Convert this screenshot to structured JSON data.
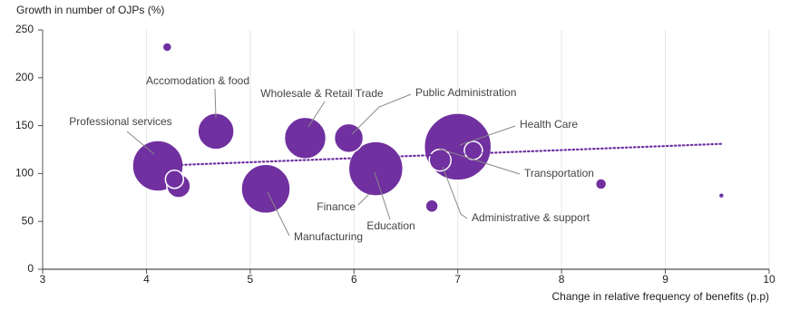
{
  "chart_data": {
    "type": "bubble",
    "y_label": "Growth in number of OJPs (%)",
    "x_label": "Change in relative frequency of benefits (p.p)",
    "color": "#7030a0",
    "x": [
      7.0,
      6.21,
      4.11,
      5.15,
      5.53,
      4.67,
      5.95,
      4.31,
      6.83,
      4.27,
      7.15,
      6.75,
      8.38,
      4.2,
      9.54
    ],
    "values": [
      128,
      105,
      108,
      84,
      137,
      144,
      137,
      87,
      114,
      94,
      124,
      66,
      89,
      232,
      77
    ],
    "sizes": [
      37,
      30,
      28,
      27,
      23,
      20,
      16,
      13,
      12,
      10,
      10,
      7,
      6,
      5,
      3
    ],
    "trend": {
      "x": [
        4.1,
        9.55
      ],
      "y": [
        108,
        131
      ]
    },
    "annotations": [
      "Accomodation & food",
      "Wholesale & Retail Trade",
      "Public Administration",
      "Professional services",
      "Health Care",
      "Transportation",
      "Administrative & support",
      "Education",
      "Finance",
      "Manufacturing"
    ],
    "xlim": [
      3,
      10
    ],
    "xticks": [
      3,
      4,
      5,
      6,
      7,
      8,
      9,
      10
    ],
    "ylim": [
      0,
      250
    ],
    "yticks": [
      0,
      50,
      100,
      150,
      200,
      250
    ],
    "grid": true
  }
}
